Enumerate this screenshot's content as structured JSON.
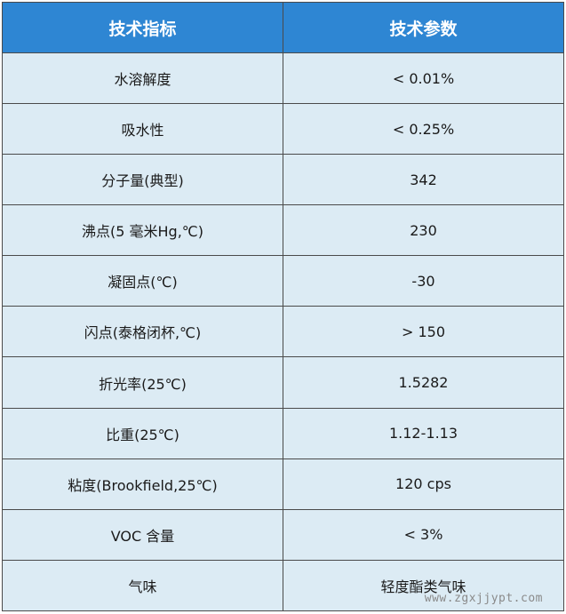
{
  "header": {
    "col1": "技术指标",
    "col2": "技术参数"
  },
  "rows": [
    {
      "name": "水溶解度",
      "value": "< 0.01%"
    },
    {
      "name": "吸水性",
      "value": "< 0.25%"
    },
    {
      "name": "分子量(典型)",
      "value": "342"
    },
    {
      "name": "沸点(5 毫米Hg,℃)",
      "value": "230"
    },
    {
      "name": "凝固点(℃)",
      "value": "-30"
    },
    {
      "name": "闪点(泰格闭杯,℃)",
      "value": "> 150"
    },
    {
      "name": "折光率(25℃)",
      "value": "1.5282"
    },
    {
      "name": "比重(25℃)",
      "value": "1.12-1.13"
    },
    {
      "name": "粘度(Brookfield,25℃)",
      "value": "120 cps"
    },
    {
      "name": "VOC 含量",
      "value": "< 3%"
    },
    {
      "name": "气味",
      "value": "轻度酯类气味"
    }
  ],
  "watermark": "www.zgxjjypt.com",
  "colors": {
    "header_bg": "#2e86d3",
    "header_text": "#ffffff",
    "cell_bg": "#dcebf4",
    "border": "#4a4a4a"
  }
}
